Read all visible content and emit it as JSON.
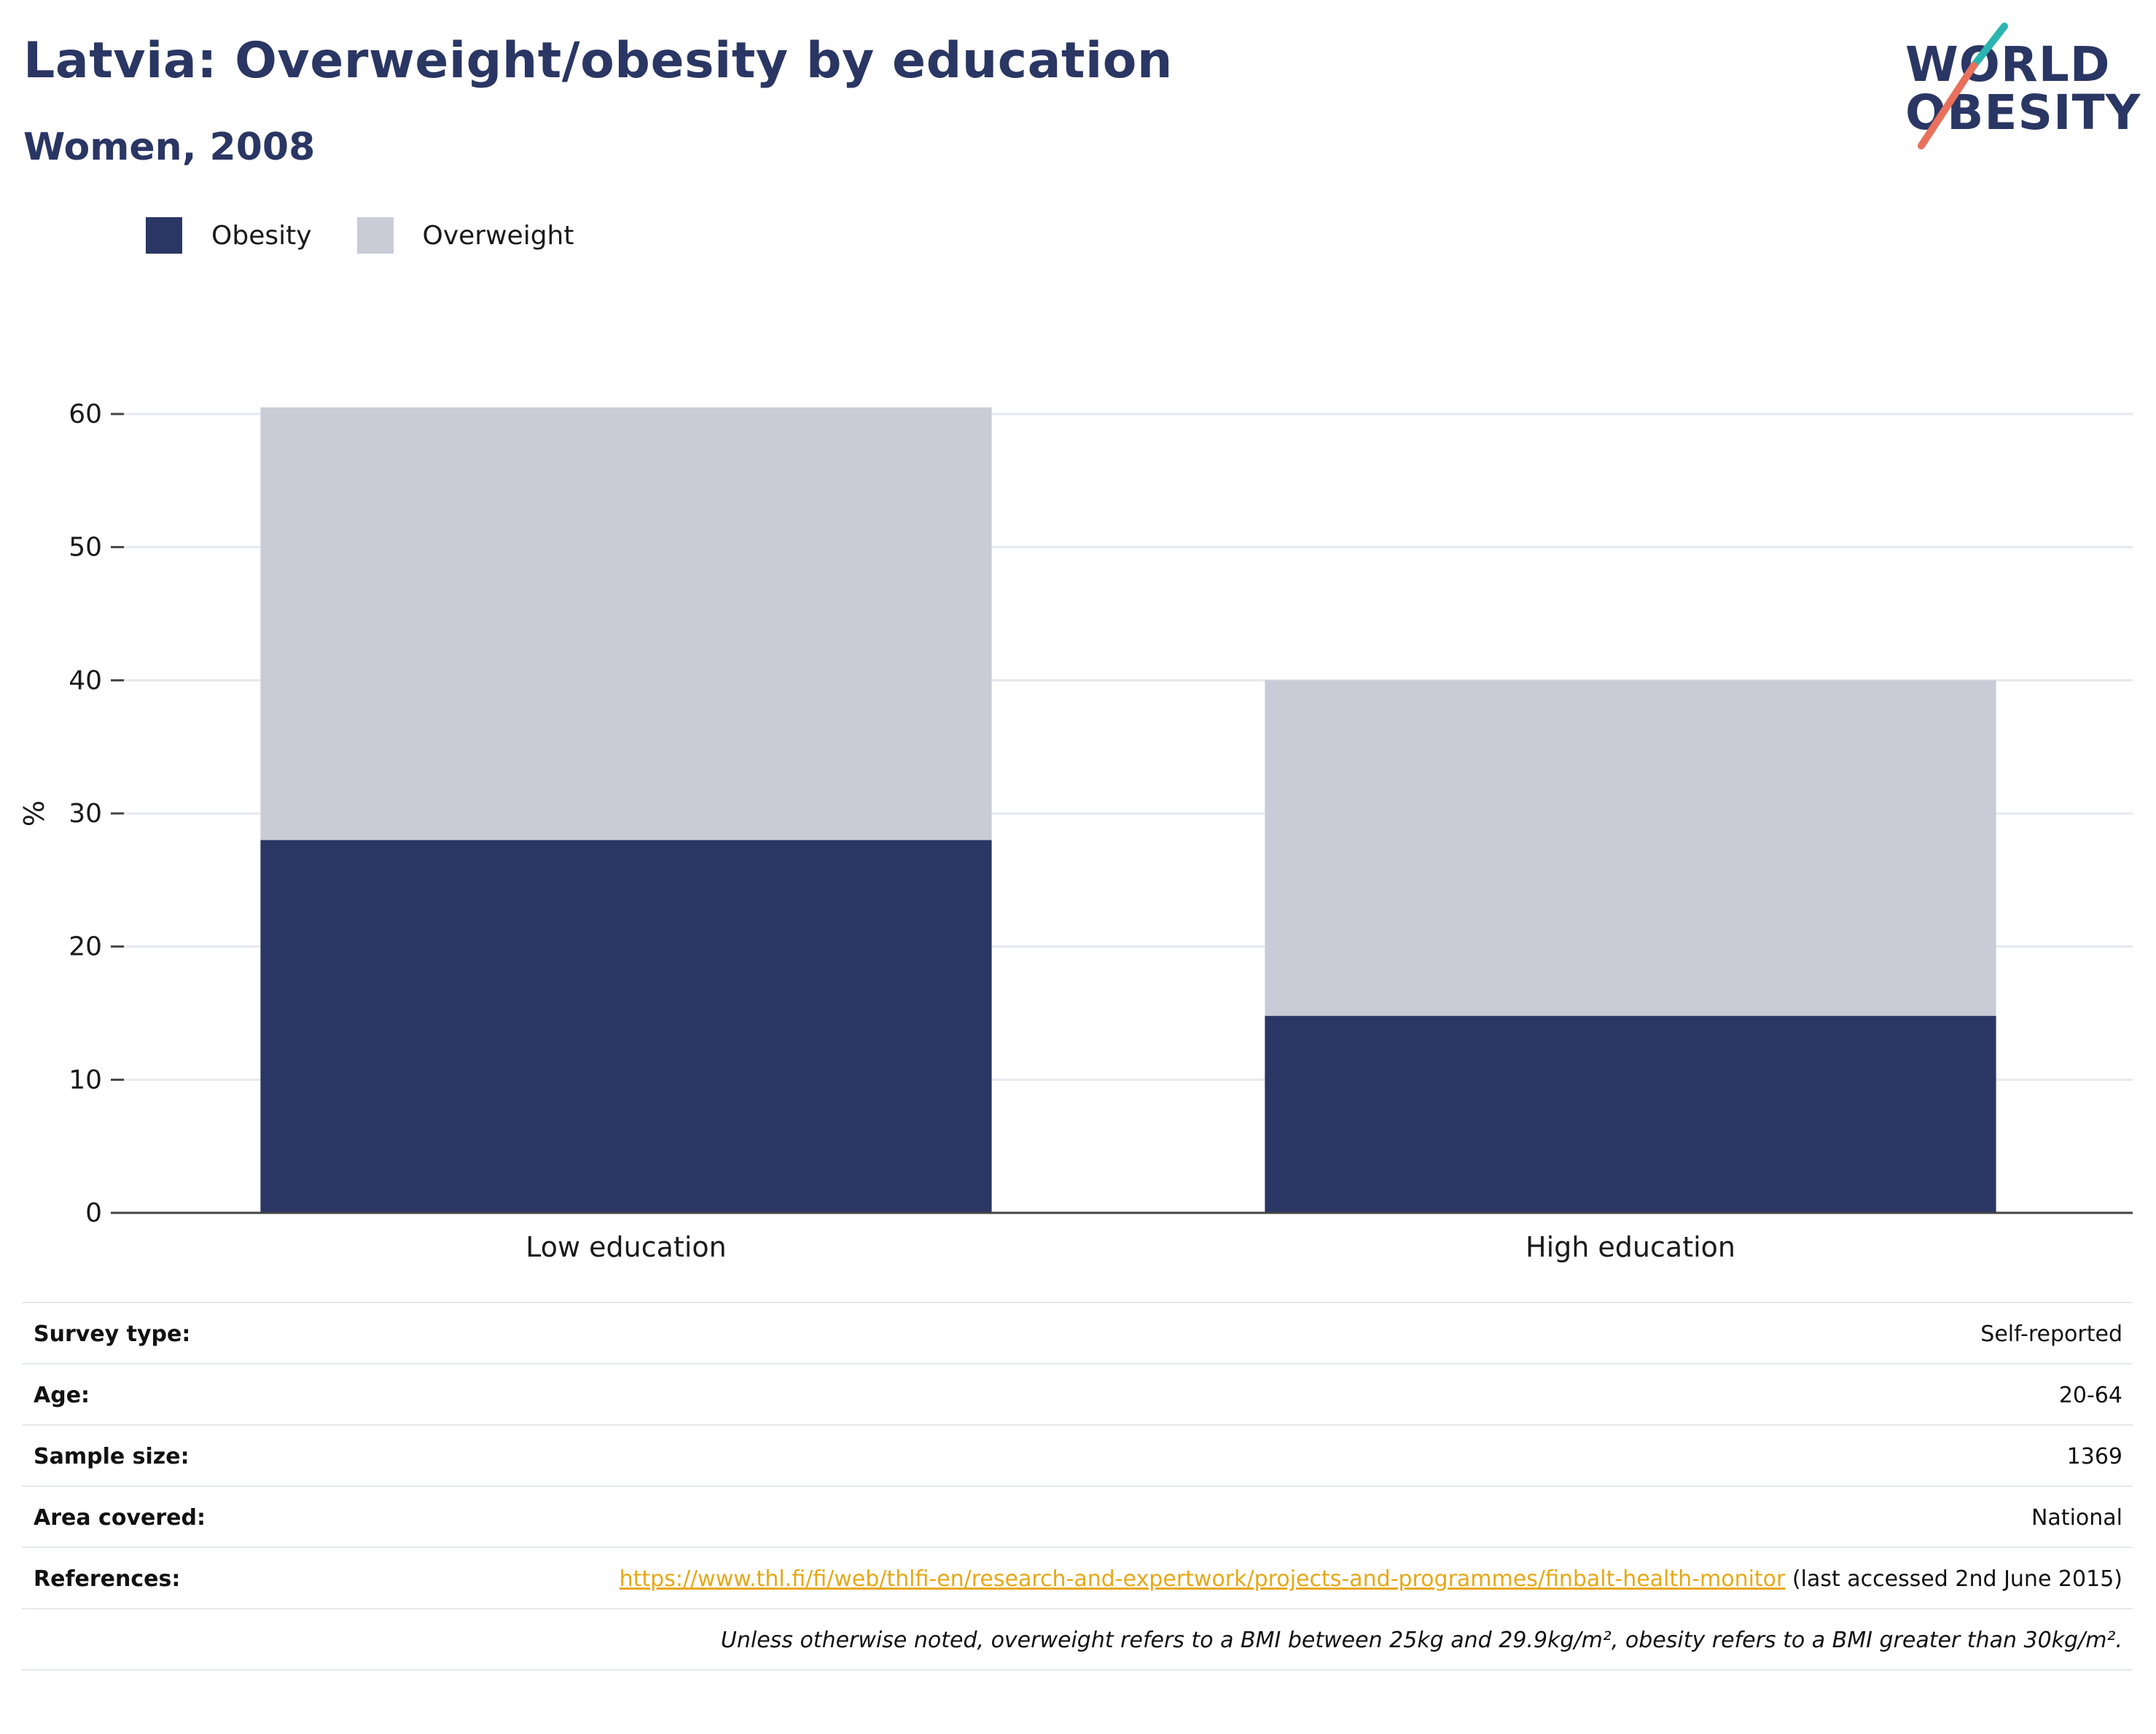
{
  "title": "Latvia: Overweight/obesity by education",
  "subtitle": "Women, 2008",
  "logo": {
    "line1": "WORLD",
    "line2": "OBESITY",
    "accent_colors": [
      "#2bb5b0",
      "#e8705c"
    ]
  },
  "legend": [
    {
      "label": "Obesity",
      "color": "#2a3663"
    },
    {
      "label": "Overweight",
      "color": "#c9ccd7"
    }
  ],
  "chart_data": {
    "type": "bar",
    "stacked": true,
    "categories": [
      "Low education",
      "High education"
    ],
    "series": [
      {
        "name": "Obesity",
        "color": "#2a3663",
        "values": [
          28.0,
          14.8
        ]
      },
      {
        "name": "Overweight",
        "color": "#c9ccd7",
        "values": [
          32.5,
          25.2
        ]
      }
    ],
    "title": "Latvia: Overweight/obesity by education",
    "subtitle": "Women, 2008",
    "xlabel": "",
    "ylabel": "%",
    "ylim": [
      0,
      60
    ],
    "yticks": [
      0,
      10,
      20,
      30,
      40,
      50,
      60
    ],
    "grid": true,
    "legend_position": "top-left"
  },
  "meta": {
    "survey_type": {
      "label": "Survey type:",
      "value": "Self-reported"
    },
    "age": {
      "label": "Age:",
      "value": "20-64"
    },
    "sample_size": {
      "label": "Sample size:",
      "value": "1369"
    },
    "area": {
      "label": "Area covered:",
      "value": "National"
    },
    "references": {
      "label": "References:",
      "link": "https://www.thl.fi/fi/web/thlfi-en/research-and-expertwork/projects-and-programmes/finbalt-health-monitor",
      "note": " (last accessed 2nd June 2015)"
    },
    "footnote": "Unless otherwise noted, overweight refers to a BMI between 25kg and 29.9kg/m², obesity refers to a BMI greater than 30kg/m²."
  }
}
